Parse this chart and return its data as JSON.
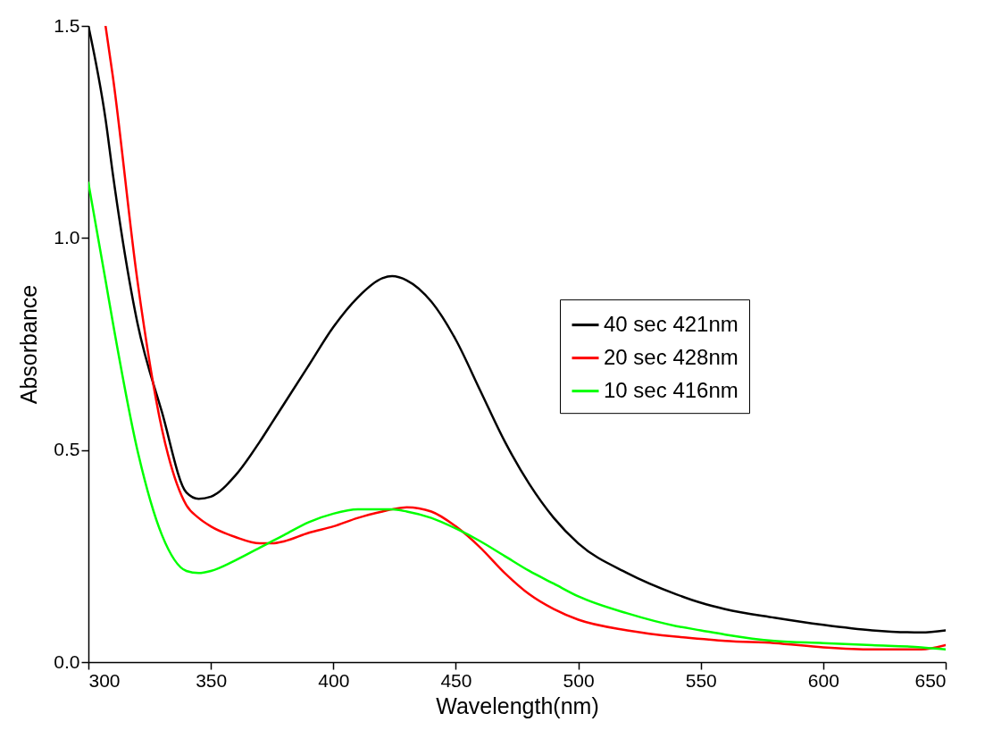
{
  "chart_data": {
    "type": "line",
    "xlabel": "Wavelength(nm)",
    "ylabel": "Absorbance",
    "x": [
      300,
      307,
      310,
      320,
      330,
      340,
      345,
      350,
      360,
      370,
      375,
      380,
      390,
      400,
      410,
      420,
      424,
      430,
      440,
      450,
      460,
      470,
      480,
      490,
      500,
      520,
      540,
      550,
      560,
      580,
      600,
      620,
      640,
      650
    ],
    "series": [
      {
        "name": "40 sec 421nm",
        "color": "#000000",
        "values": [
          1.5,
          1.28,
          1.15,
          0.8,
          0.59,
          0.4,
          0.385,
          0.39,
          0.44,
          0.52,
          0.565,
          0.61,
          0.7,
          0.79,
          0.86,
          0.905,
          0.91,
          0.9,
          0.85,
          0.76,
          0.64,
          0.52,
          0.42,
          0.34,
          0.28,
          0.21,
          0.16,
          0.14,
          0.125,
          0.105,
          0.088,
          0.075,
          0.07,
          0.075
        ]
      },
      {
        "name": "20 sec 428nm",
        "color": "#ff0000",
        "values": [
          null,
          1.5,
          1.38,
          0.9,
          0.55,
          0.37,
          0.34,
          0.32,
          0.295,
          0.28,
          0.28,
          0.285,
          0.305,
          0.32,
          0.34,
          0.355,
          0.36,
          0.365,
          0.355,
          0.32,
          0.27,
          0.21,
          0.16,
          0.125,
          0.1,
          0.075,
          0.06,
          0.055,
          0.05,
          0.045,
          0.035,
          0.03,
          0.03,
          0.04
        ]
      },
      {
        "name": "10 sec 416nm",
        "color": "#00ff00",
        "values": [
          1.13,
          0.9,
          0.8,
          0.5,
          0.3,
          0.215,
          0.21,
          0.215,
          0.24,
          0.27,
          0.285,
          0.3,
          0.33,
          0.35,
          0.36,
          0.36,
          0.36,
          0.355,
          0.34,
          0.315,
          0.285,
          0.25,
          0.215,
          0.185,
          0.155,
          0.115,
          0.085,
          0.075,
          0.065,
          0.05,
          0.045,
          0.04,
          0.035,
          0.03
        ]
      }
    ],
    "xlim": [
      300,
      650
    ],
    "xticks": [
      300,
      350,
      400,
      450,
      500,
      550,
      600,
      650
    ],
    "ylim": [
      0,
      1.5
    ],
    "yticks": [
      {
        "value": 0,
        "label": "0.0"
      },
      {
        "value": 0.5,
        "label": "0.5"
      },
      {
        "value": 1,
        "label": "1.0"
      },
      {
        "value": 1.5,
        "label": "1.5"
      }
    ],
    "grid": false,
    "legend": "right",
    "marker": "none",
    "line_style": "solid"
  }
}
